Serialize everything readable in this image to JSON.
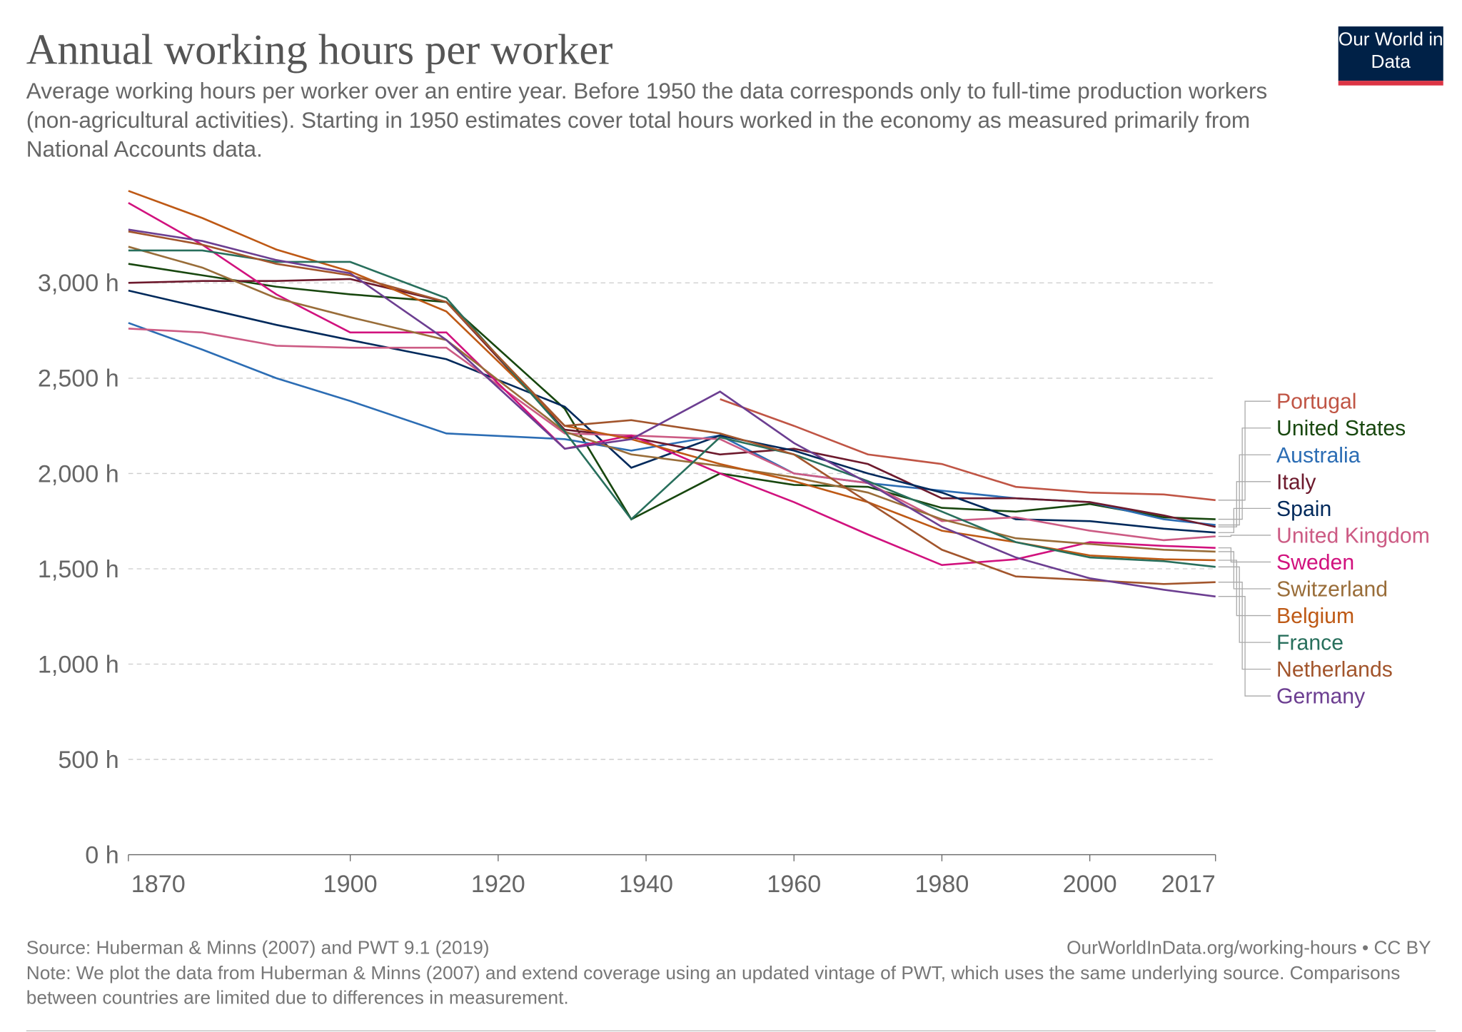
{
  "logo": "Our World in Data",
  "chart_data": {
    "type": "line",
    "title": "Annual working hours per worker",
    "subtitle": "Average working hours per worker over an entire year. Before 1950 the data corresponds only to full-time production workers (non-agricultural activities). Starting in 1950 estimates cover total hours worked in the economy as measured primarily from National Accounts data.",
    "source": "Source: Huberman & Minns (2007) and PWT 9.1 (2019)",
    "url": "OurWorldInData.org/working-hours • CC BY",
    "note": "Note: We plot the data from Huberman & Minns (2007) and extend coverage using an updated vintage of PWT, which uses the same underlying source. Comparisons between countries are limited due to differences in measurement.",
    "x": [
      1870,
      1880,
      1890,
      1900,
      1913,
      1929,
      1938,
      1950,
      1960,
      1970,
      1980,
      1990,
      2000,
      2010,
      2017
    ],
    "xlim": [
      1870,
      2017
    ],
    "xticks": [
      1870,
      1900,
      1920,
      1940,
      1960,
      1980,
      2000,
      2017
    ],
    "ylim": [
      0,
      3500
    ],
    "yticks": [
      {
        "value": 0,
        "label": "0 h"
      },
      {
        "value": 500,
        "label": "500 h"
      },
      {
        "value": 1000,
        "label": "1,000 h"
      },
      {
        "value": 1500,
        "label": "1,500 h"
      },
      {
        "value": 2000,
        "label": "2,000 h"
      },
      {
        "value": 2500,
        "label": "2,500 h"
      },
      {
        "value": 3000,
        "label": "3,000 h"
      }
    ],
    "grid": true,
    "series": [
      {
        "name": "Portugal",
        "color": "#c05545",
        "values": [
          null,
          null,
          null,
          null,
          null,
          null,
          null,
          2390,
          2250,
          2100,
          2050,
          1930,
          1900,
          1890,
          1860
        ]
      },
      {
        "name": "United States",
        "color": "#18470f",
        "values": [
          3100,
          3040,
          2980,
          2940,
          2900,
          2340,
          1760,
          2000,
          1940,
          1930,
          1820,
          1800,
          1840,
          1770,
          1760
        ]
      },
      {
        "name": "Australia",
        "color": "#2c6db4",
        "values": [
          2790,
          2650,
          2500,
          2380,
          2210,
          2180,
          2120,
          2200,
          2000,
          1950,
          1910,
          1870,
          1850,
          1760,
          1730
        ]
      },
      {
        "name": "Italy",
        "color": "#6d1a2d",
        "values": [
          3000,
          3010,
          3010,
          3020,
          2900,
          2230,
          2190,
          2100,
          2130,
          2050,
          1870,
          1870,
          1850,
          1780,
          1720
        ]
      },
      {
        "name": "Spain",
        "color": "#00295b",
        "values": [
          2960,
          2870,
          2780,
          2700,
          2600,
          2350,
          2030,
          2200,
          2120,
          2000,
          1900,
          1760,
          1750,
          1710,
          1690
        ]
      },
      {
        "name": "United Kingdom",
        "color": "#cc5b84",
        "values": [
          2760,
          2740,
          2670,
          2660,
          2660,
          2210,
          2200,
          2180,
          2000,
          1950,
          1750,
          1770,
          1700,
          1650,
          1670
        ]
      },
      {
        "name": "Sweden",
        "color": "#d1127e",
        "values": [
          3420,
          3200,
          2940,
          2740,
          2740,
          2130,
          2200,
          2000,
          1850,
          1680,
          1520,
          1550,
          1640,
          1620,
          1610
        ]
      },
      {
        "name": "Switzerland",
        "color": "#996d39",
        "values": [
          3190,
          3080,
          2920,
          2820,
          2700,
          2220,
          2100,
          2040,
          1980,
          1900,
          1760,
          1660,
          1630,
          1600,
          1590
        ]
      },
      {
        "name": "Belgium",
        "color": "#be5915",
        "values": [
          3483,
          3340,
          3175,
          3060,
          2850,
          2250,
          2180,
          2050,
          1960,
          1850,
          1700,
          1640,
          1570,
          1550,
          1545
        ]
      },
      {
        "name": "France",
        "color": "#286f5c",
        "values": [
          3170,
          3170,
          3110,
          3110,
          2920,
          2220,
          1760,
          2190,
          2100,
          1960,
          1800,
          1640,
          1560,
          1540,
          1510
        ]
      },
      {
        "name": "Netherlands",
        "color": "#a2552c",
        "values": [
          3270,
          3200,
          3100,
          3040,
          2900,
          2250,
          2280,
          2210,
          2100,
          1850,
          1600,
          1460,
          1440,
          1420,
          1430
        ]
      },
      {
        "name": "Germany",
        "color": "#6c3e91",
        "values": [
          3280,
          3220,
          3120,
          3050,
          2700,
          2130,
          2180,
          2430,
          2160,
          1950,
          1720,
          1560,
          1450,
          1390,
          1355
        ]
      }
    ]
  }
}
